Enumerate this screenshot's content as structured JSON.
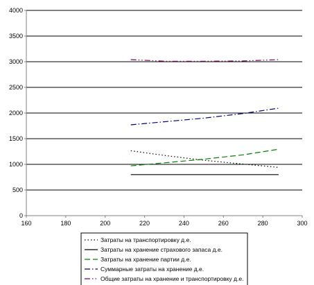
{
  "chart_data": {
    "type": "line",
    "xlim": [
      160,
      300
    ],
    "ylim": [
      0,
      4000
    ],
    "xticks": [
      160,
      180,
      200,
      220,
      240,
      260,
      280,
      300
    ],
    "yticks": [
      0,
      500,
      1000,
      1500,
      2000,
      2500,
      3000,
      3500,
      4000
    ],
    "grid": "horizontal",
    "legend_position": "bottom",
    "x": [
      213,
      230,
      250,
      270,
      288
    ],
    "series": [
      {
        "name": "Затраты на транспортировку д.е.",
        "color": "#000000",
        "dash": "1.5,3",
        "values": [
          1265,
          1175,
          1080,
          1005,
          940
        ]
      },
      {
        "name": "Затраты на хранение страхового запаса д.е.",
        "color": "#000000",
        "dash": "",
        "values": [
          800,
          800,
          800,
          800,
          800
        ]
      },
      {
        "name": "Затраты на хранение партии д.е.",
        "color": "#008000",
        "dash": "8,4",
        "values": [
          970,
          1030,
          1100,
          1185,
          1295
        ]
      },
      {
        "name": "Суммарные затраты на хранение д.е.",
        "color": "#000080",
        "dash": "8,3,1.5,3",
        "values": [
          1770,
          1830,
          1900,
          1990,
          2095
        ]
      },
      {
        "name": "Общие затраты на хранение и транспортировку д.е.",
        "color": "#800060",
        "dash": "8,3,1.5,3,1.5,3",
        "values": [
          3040,
          3010,
          3010,
          3015,
          3040
        ]
      }
    ]
  }
}
